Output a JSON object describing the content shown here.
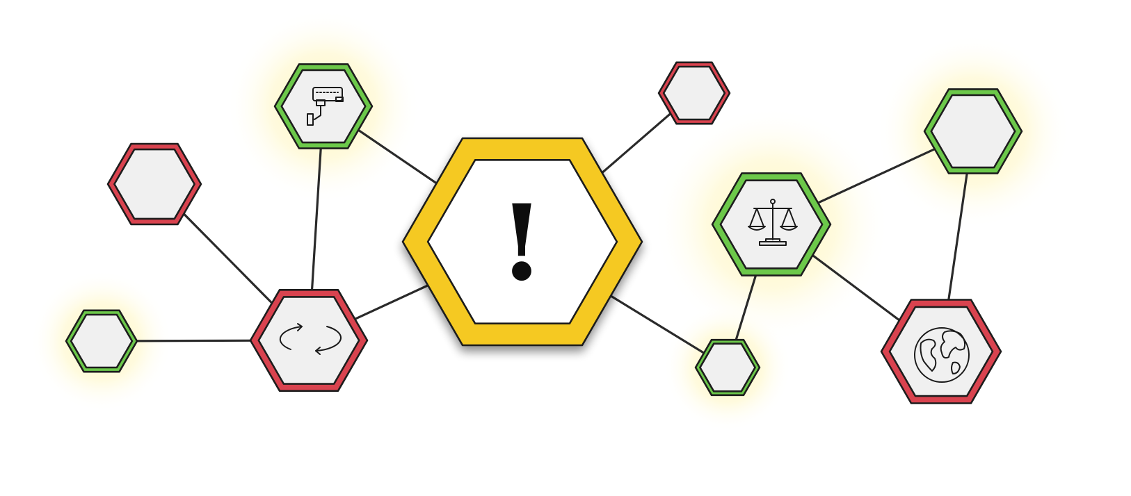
{
  "diagram": {
    "center": {
      "symbol": "!",
      "ring_color": "#f5c924",
      "inner_color": "#ffffff"
    },
    "colors": {
      "active_ring": "#6cc84a",
      "inactive_ring": "#d9434f",
      "node_fill": "#f0f0f0",
      "glow": "#fff2a8",
      "line": "#2a2a2a"
    },
    "nodes": [
      {
        "id": "camera",
        "status": "active",
        "icon": "security-camera-icon"
      },
      {
        "id": "left-top",
        "status": "inactive",
        "icon": ""
      },
      {
        "id": "far-left",
        "status": "active",
        "icon": ""
      },
      {
        "id": "refresh",
        "status": "inactive",
        "icon": "refresh-cycle-icon"
      },
      {
        "id": "top-right-small",
        "status": "inactive",
        "icon": ""
      },
      {
        "id": "scales",
        "status": "active",
        "icon": "scales-of-justice-icon"
      },
      {
        "id": "bottom-mid-small",
        "status": "active",
        "icon": ""
      },
      {
        "id": "far-right-top",
        "status": "active",
        "icon": ""
      },
      {
        "id": "globe",
        "status": "inactive",
        "icon": "globe-icon"
      }
    ],
    "edges": [
      [
        "camera",
        "center"
      ],
      [
        "refresh",
        "center"
      ],
      [
        "camera",
        "refresh"
      ],
      [
        "left-top",
        "refresh"
      ],
      [
        "far-left",
        "refresh"
      ],
      [
        "top-right-small",
        "center"
      ],
      [
        "bottom-mid-small",
        "center"
      ],
      [
        "scales",
        "bottom-mid-small"
      ],
      [
        "scales",
        "far-right-top"
      ],
      [
        "scales",
        "globe"
      ],
      [
        "far-right-top",
        "globe"
      ]
    ]
  }
}
